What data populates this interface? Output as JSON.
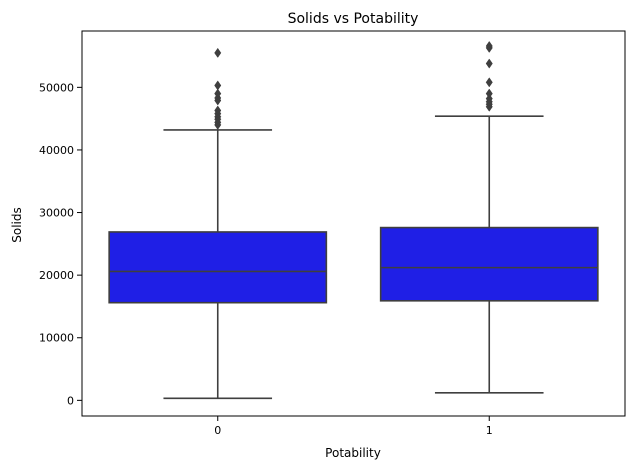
{
  "chart_data": {
    "type": "box",
    "title": "Solids vs Potability",
    "xlabel": "Potability",
    "ylabel": "Solids",
    "categories": [
      "0",
      "1"
    ],
    "ylim": [
      -2500,
      59000
    ],
    "yticks": [
      0,
      10000,
      20000,
      30000,
      40000,
      50000
    ],
    "ytick_labels": [
      "0",
      "10000",
      "20000",
      "30000",
      "40000",
      "50000"
    ],
    "grid": false,
    "box_color": "#1f1fe6",
    "line_color": "#3f3f3f",
    "boxes": [
      {
        "category": "0",
        "whisker_low": 320,
        "q1": 15600,
        "median": 20600,
        "q3": 26900,
        "whisker_high": 43200,
        "outliers": [
          44000,
          44400,
          44900,
          45300,
          45800,
          46300,
          47900,
          48300,
          49000,
          50300,
          55500
        ]
      },
      {
        "category": "1",
        "whisker_low": 1200,
        "q1": 15900,
        "median": 21200,
        "q3": 27600,
        "whisker_high": 45400,
        "outliers": [
          46900,
          47300,
          47700,
          48200,
          49000,
          50800,
          53800,
          56300,
          56600
        ]
      }
    ]
  }
}
